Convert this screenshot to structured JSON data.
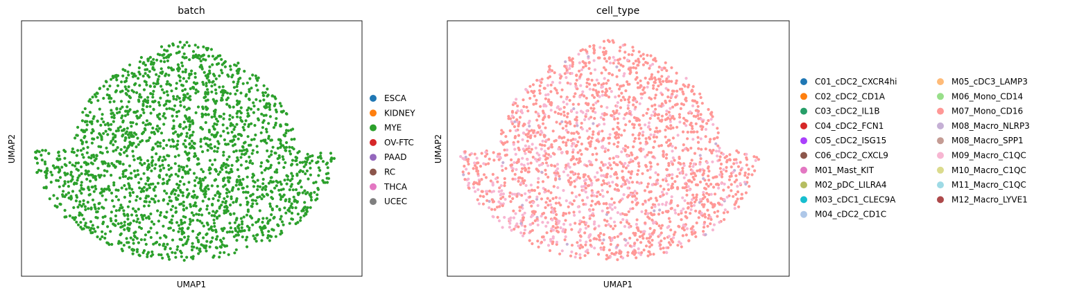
{
  "chart_data": [
    {
      "type": "scatter",
      "title": "batch",
      "xlabel": "UMAP1",
      "ylabel": "UMAP2",
      "grid": false,
      "ticks": false,
      "legend_placement": "right",
      "legend_columns": 1,
      "point_color": "#2ca02c",
      "categories": [
        {
          "name": "ESCA",
          "color": "#1f77b4"
        },
        {
          "name": "KIDNEY",
          "color": "#ff7f0e"
        },
        {
          "name": "MYE",
          "color": "#2ca02c"
        },
        {
          "name": "OV-FTC",
          "color": "#d62728"
        },
        {
          "name": "PAAD",
          "color": "#9467bd"
        },
        {
          "name": "RC",
          "color": "#8c564b"
        },
        {
          "name": "THCA",
          "color": "#e377c2"
        },
        {
          "name": "UCEC",
          "color": "#7f7f7f"
        }
      ]
    },
    {
      "type": "scatter",
      "title": "cell_type",
      "xlabel": "UMAP1",
      "ylabel": "UMAP2",
      "grid": false,
      "ticks": false,
      "legend_placement": "right",
      "legend_columns": 2,
      "point_color": "#ff9896",
      "minor_colors": [
        "#f7b6d2",
        "#c5b0d5"
      ],
      "categories": [
        {
          "name": "C01_cDC2_CXCR4hi",
          "color": "#1f77b4"
        },
        {
          "name": "C02_cDC2_CD1A",
          "color": "#ff7f0e"
        },
        {
          "name": "C03_cDC2_IL1B",
          "color": "#279e68"
        },
        {
          "name": "C04_cDC2_FCN1",
          "color": "#d62728"
        },
        {
          "name": "C05_cDC2_ISG15",
          "color": "#aa40fc"
        },
        {
          "name": "C06_cDC2_CXCL9",
          "color": "#8c564b"
        },
        {
          "name": "M01_Mast_KIT",
          "color": "#e377c2"
        },
        {
          "name": "M02_pDC_LILRA4",
          "color": "#b5bd61"
        },
        {
          "name": "M03_cDC1_CLEC9A",
          "color": "#17becf"
        },
        {
          "name": "M04_cDC2_CD1C",
          "color": "#aec7e8"
        },
        {
          "name": "M05_cDC3_LAMP3",
          "color": "#ffbb78"
        },
        {
          "name": "M06_Mono_CD14",
          "color": "#98df8a"
        },
        {
          "name": "M07_Mono_CD16",
          "color": "#ff9896"
        },
        {
          "name": "M08_Macro_NLRP3",
          "color": "#c5b0d5"
        },
        {
          "name": "M08_Macro_SPP1",
          "color": "#c49c94"
        },
        {
          "name": "M09_Macro_C1QC",
          "color": "#f7b6d2"
        },
        {
          "name": "M10_Macro_C1QC",
          "color": "#dbdb8d"
        },
        {
          "name": "M11_Macro_C1QC",
          "color": "#9edae5"
        },
        {
          "name": "M12_Macro_LYVE1",
          "color": "#ad494a"
        }
      ]
    }
  ]
}
